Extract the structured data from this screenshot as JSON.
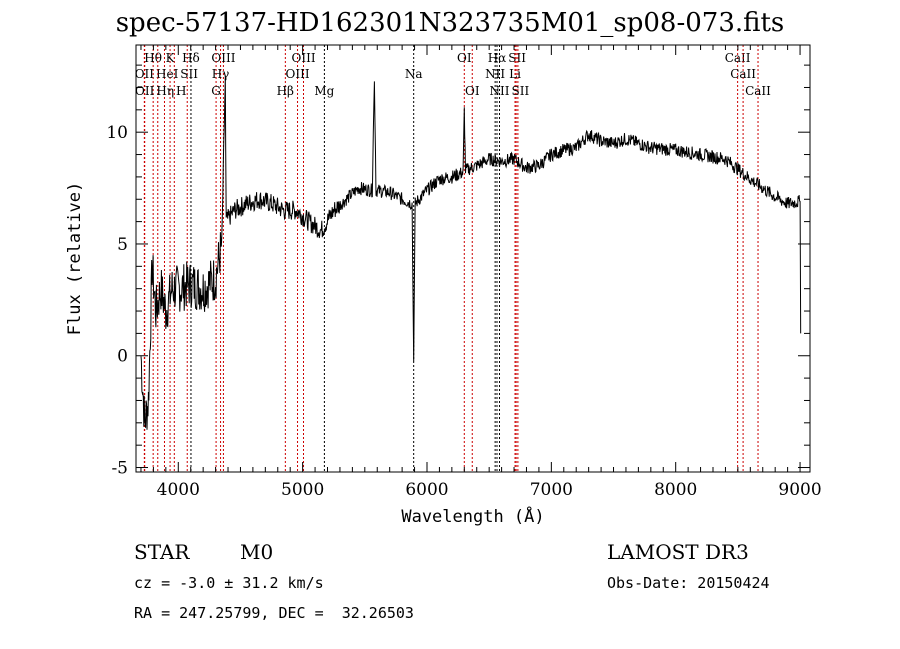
{
  "title": "spec-57137-HD162301N323735M01_sp08-073.fits",
  "info": {
    "class": "STAR",
    "subclass": "M0",
    "survey": "LAMOST DR3",
    "cz": "cz = -3.0 ± 31.2 km/s",
    "obsdate": "Obs-Date: 20150424",
    "coords": "RA = 247.25799, DEC =  32.26503"
  },
  "chart_data": {
    "type": "line",
    "title": "spec-57137-HD162301N323735M01_sp08-073.fits",
    "xlabel": "Wavelength (Å)",
    "ylabel": "Flux (relative)",
    "xlim": [
      3660,
      9080
    ],
    "ylim": [
      -5.2,
      13.9
    ],
    "xticks": [
      4000,
      5000,
      6000,
      7000,
      8000,
      9000
    ],
    "xtick_labels": [
      "4000",
      "5000",
      "6000",
      "7000",
      "8000",
      "9000"
    ],
    "yticks": [
      -5,
      0,
      5,
      10
    ],
    "ytick_labels": [
      "-5",
      "0",
      "5",
      "10"
    ],
    "line_color": "#000000",
    "spectrum_anchors": [
      [
        3700,
        0
      ],
      [
        3730,
        -3
      ],
      [
        3760,
        -2
      ],
      [
        3790,
        4
      ],
      [
        3820,
        2
      ],
      [
        3860,
        3
      ],
      [
        3900,
        2
      ],
      [
        3950,
        3
      ],
      [
        4000,
        3
      ],
      [
        4100,
        3.2
      ],
      [
        4200,
        3
      ],
      [
        4300,
        3.5
      ],
      [
        4350,
        5
      ],
      [
        4378,
        12.5
      ],
      [
        4385,
        6
      ],
      [
        4450,
        6.5
      ],
      [
        4550,
        6.8
      ],
      [
        4650,
        7
      ],
      [
        4750,
        6.8
      ],
      [
        4850,
        6.5
      ],
      [
        4950,
        6.5
      ],
      [
        5050,
        6
      ],
      [
        5150,
        5.6
      ],
      [
        5250,
        6.5
      ],
      [
        5350,
        7
      ],
      [
        5450,
        7.5
      ],
      [
        5560,
        7.4
      ],
      [
        5577,
        12.5
      ],
      [
        5590,
        7.4
      ],
      [
        5700,
        7.3
      ],
      [
        5800,
        7
      ],
      [
        5880,
        6.8
      ],
      [
        5893,
        0
      ],
      [
        5905,
        6.8
      ],
      [
        6000,
        7.4
      ],
      [
        6100,
        7.9
      ],
      [
        6200,
        8
      ],
      [
        6290,
        8.2
      ],
      [
        6300,
        11
      ],
      [
        6310,
        8.3
      ],
      [
        6400,
        8.5
      ],
      [
        6500,
        8.8
      ],
      [
        6600,
        8.7
      ],
      [
        6700,
        8.8
      ],
      [
        6800,
        8.4
      ],
      [
        6900,
        8.5
      ],
      [
        7000,
        9
      ],
      [
        7100,
        9.2
      ],
      [
        7200,
        9.3
      ],
      [
        7300,
        9.9
      ],
      [
        7400,
        9.6
      ],
      [
        7500,
        9.5
      ],
      [
        7600,
        9.7
      ],
      [
        7800,
        9.3
      ],
      [
        8000,
        9.2
      ],
      [
        8200,
        9
      ],
      [
        8400,
        8.8
      ],
      [
        8600,
        7.9
      ],
      [
        8800,
        7.1
      ],
      [
        8900,
        6.8
      ],
      [
        9000,
        6.9
      ],
      [
        9005,
        1
      ]
    ],
    "lines": [
      {
        "w": 3798,
        "label": "Hθ",
        "row": 1,
        "color": "#cc0000"
      },
      {
        "w": 3934,
        "label": "K",
        "row": 1,
        "color": "#cc0000"
      },
      {
        "w": 4102,
        "label": "Hδ",
        "row": 1,
        "color": "#000000"
      },
      {
        "w": 4363,
        "label": "OIII",
        "row": 1,
        "color": "#cc0000"
      },
      {
        "w": 5007,
        "label": "OIII",
        "row": 1,
        "color": "#cc0000"
      },
      {
        "w": 6300,
        "label": "OI",
        "row": 1,
        "color": "#cc0000"
      },
      {
        "w": 6563,
        "label": "Hα",
        "row": 1,
        "color": "#000000"
      },
      {
        "w": 6717,
        "label": "SII",
        "row": 1,
        "color": "#cc0000"
      },
      {
        "w": 8498,
        "label": "CaII",
        "row": 1,
        "color": "#cc0000"
      },
      {
        "w": 3727,
        "label": "OII",
        "row": 2,
        "color": "#cc0000"
      },
      {
        "w": 3889,
        "label": "HeI",
        "row": 2,
        "color": "#cc0000"
      },
      {
        "w": 4072,
        "label": "SII",
        "row": 2,
        "color": "#cc0000"
      },
      {
        "w": 4340,
        "label": "Hγ",
        "row": 2,
        "color": "#cc0000"
      },
      {
        "w": 4959,
        "label": "OIII",
        "row": 2,
        "color": "#cc0000"
      },
      {
        "w": 5893,
        "label": "Na",
        "row": 2,
        "color": "#000000"
      },
      {
        "w": 6548,
        "label": "NII",
        "row": 2,
        "color": "#000000"
      },
      {
        "w": 6708,
        "label": "Li",
        "row": 2,
        "color": "#cc0000"
      },
      {
        "w": 8542,
        "label": "CaII",
        "row": 2,
        "color": "#cc0000"
      },
      {
        "w": 3730,
        "label": "OII",
        "row": 3,
        "color": "#cc0000"
      },
      {
        "w": 3835,
        "label": "Hη",
        "row": 3,
        "color": "#cc0000"
      },
      {
        "w": 3968,
        "label": "H",
        "row": 3,
        "color": "#cc0000"
      },
      {
        "w": 4304,
        "label": "G",
        "row": 3,
        "color": "#cc0000"
      },
      {
        "w": 4861,
        "label": "Hβ",
        "row": 3,
        "color": "#cc0000"
      },
      {
        "w": 5175,
        "label": "Mg",
        "row": 3,
        "color": "#000000"
      },
      {
        "w": 6364,
        "label": "OI",
        "row": 3,
        "color": "#cc0000"
      },
      {
        "w": 6583,
        "label": "NII",
        "row": 3,
        "color": "#000000"
      },
      {
        "w": 6731,
        "label": "SII",
        "row": 3,
        "color": "#cc0000"
      },
      {
        "w": 8662,
        "label": "CaII",
        "row": 3,
        "color": "#cc0000"
      }
    ]
  }
}
